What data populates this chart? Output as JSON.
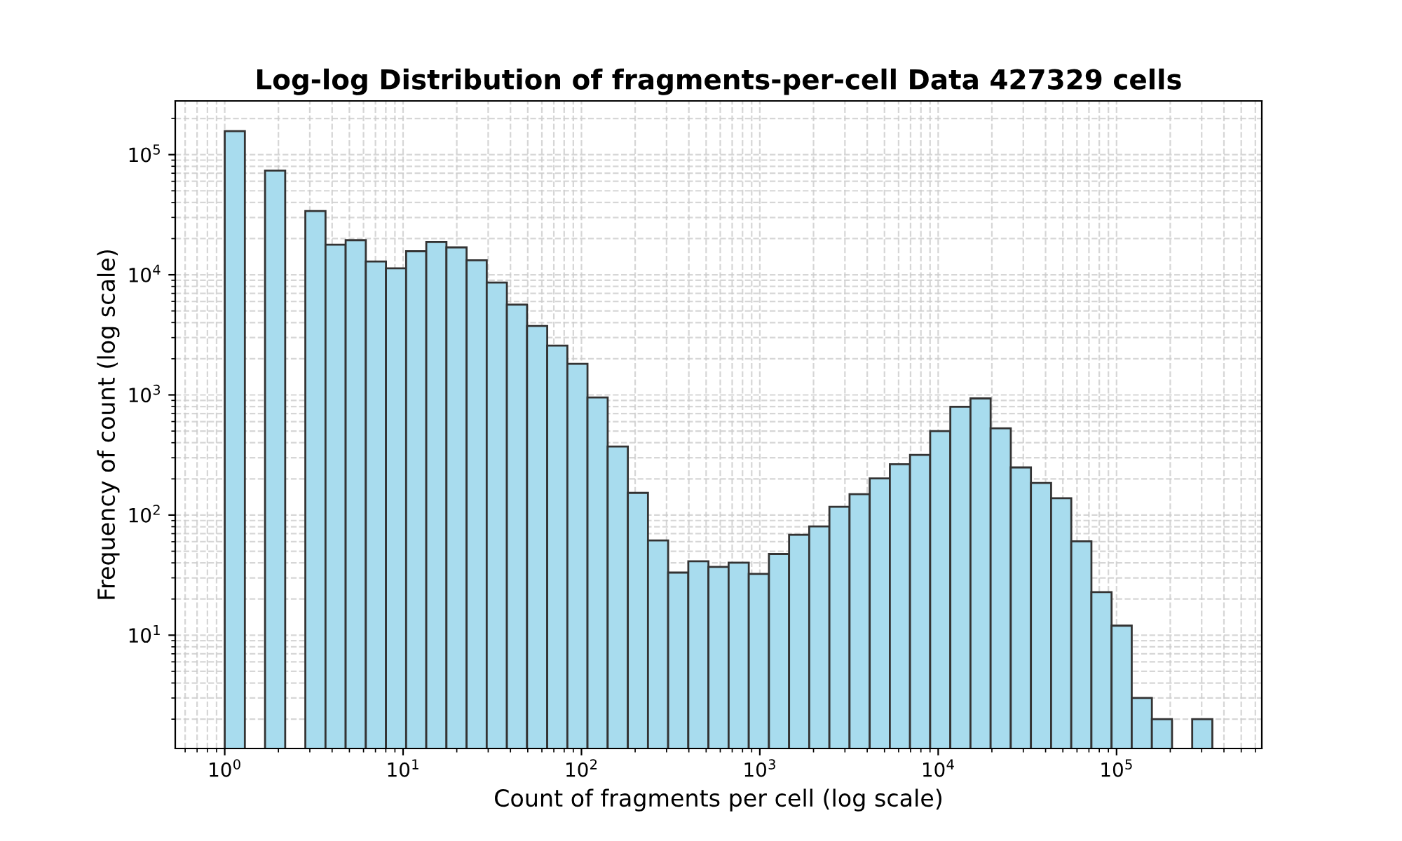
{
  "chart_data": {
    "type": "histogram",
    "title": "Log-log Distribution of fragments-per-cell Data 427329 cells",
    "xlabel": "Count of fragments per cell (log scale)",
    "ylabel": "Frequency of count (log scale)",
    "bins": [
      1,
      1.297,
      1.683,
      2.183,
      2.831,
      3.673,
      4.764,
      6.18,
      8.017,
      10.4,
      13.49,
      17.5,
      22.7,
      29.44,
      38.19,
      49.55,
      64.27,
      83.37,
      108.1,
      140.3,
      182.0,
      236.0,
      306.2,
      397.2,
      515.2,
      668.3,
      867.0,
      1125,
      1459,
      1892,
      2455,
      3184,
      4130,
      5358,
      6950,
      9016,
      11695,
      15171,
      19679,
      25527,
      33113,
      42954,
      55719,
      72277,
      93756,
      121619,
      157761,
      204644,
      265461,
      344350
    ],
    "values": [
      157000,
      null,
      73800,
      null,
      33900,
      17800,
      19400,
      12900,
      11300,
      15700,
      18700,
      16900,
      13200,
      8610,
      5650,
      3750,
      2570,
      1815,
      953,
      372,
      153,
      61.5,
      33.2,
      41.2,
      37.0,
      40.1,
      32.4,
      47.4,
      68.5,
      80.5,
      117,
      149,
      202,
      265,
      317,
      500,
      796,
      935,
      527,
      249,
      185,
      138,
      60.4,
      22.8,
      12.0,
      3,
      2,
      null,
      2
    ],
    "color": "#a8dcee",
    "log": "xy",
    "grid": true,
    "xlim": [
      0.528,
      652000
    ],
    "ylim": [
      1.14,
      280000
    ],
    "xticks": [
      {
        "value": 1,
        "label": "10$^{0}$"
      },
      {
        "value": 10,
        "label": "10$^{1}$"
      },
      {
        "value": 100,
        "label": "10$^{2}$"
      },
      {
        "value": 1000,
        "label": "10$^{3}$"
      },
      {
        "value": 10000,
        "label": "10$^{4}$"
      },
      {
        "value": 100000,
        "label": "10$^{5}$"
      }
    ],
    "yticks": [
      {
        "value": 10,
        "label": "10$^{1}$"
      },
      {
        "value": 100,
        "label": "10$^{2}$"
      },
      {
        "value": 1000,
        "label": "10$^{3}$"
      },
      {
        "value": 10000,
        "label": "10$^{4}$"
      },
      {
        "value": 100000,
        "label": "10$^{5}$"
      }
    ]
  }
}
